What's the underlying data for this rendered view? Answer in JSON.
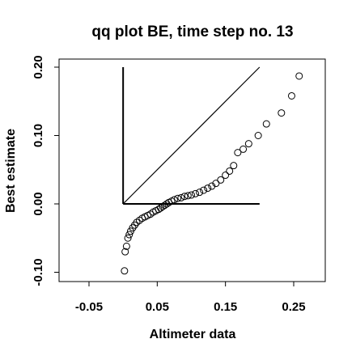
{
  "chart_data": {
    "type": "scatter",
    "title": "qq plot BE, time step no. 13",
    "xlabel": "Altimeter data",
    "ylabel": "Best estimate",
    "xlim": [
      -0.1,
      0.29
    ],
    "ylim": [
      -0.105,
      0.21
    ],
    "x_ticks": [
      -0.05,
      0.05,
      0.15,
      0.25
    ],
    "x_tick_labels": [
      "-0.05",
      "0.05",
      "0.15",
      "0.25"
    ],
    "y_ticks": [
      -0.1,
      0.0,
      0.1,
      0.2
    ],
    "y_tick_labels": [
      "-0.10",
      "0.00",
      "0.10",
      "0.20"
    ],
    "grid": false,
    "reference_lines": [
      {
        "x": [
          0,
          0
        ],
        "y": [
          0,
          0.2
        ]
      },
      {
        "x": [
          0,
          0.2
        ],
        "y": [
          0,
          0
        ]
      },
      {
        "x": [
          0,
          0.2
        ],
        "y": [
          0,
          0.2
        ]
      }
    ],
    "points": [
      [
        0.002,
        -0.098
      ],
      [
        0.003,
        -0.07
      ],
      [
        0.005,
        -0.062
      ],
      [
        0.007,
        -0.05
      ],
      [
        0.009,
        -0.045
      ],
      [
        0.011,
        -0.04
      ],
      [
        0.014,
        -0.035
      ],
      [
        0.017,
        -0.031
      ],
      [
        0.02,
        -0.027
      ],
      [
        0.024,
        -0.024
      ],
      [
        0.028,
        -0.021
      ],
      [
        0.032,
        -0.019
      ],
      [
        0.036,
        -0.017
      ],
      [
        0.04,
        -0.015
      ],
      [
        0.044,
        -0.012
      ],
      [
        0.048,
        -0.01
      ],
      [
        0.052,
        -0.008
      ],
      [
        0.055,
        -0.006
      ],
      [
        0.058,
        -0.004
      ],
      [
        0.061,
        -0.002
      ],
      [
        0.064,
        0.0
      ],
      [
        0.067,
        0.002
      ],
      [
        0.071,
        0.004
      ],
      [
        0.075,
        0.006
      ],
      [
        0.08,
        0.008
      ],
      [
        0.085,
        0.009
      ],
      [
        0.09,
        0.011
      ],
      [
        0.095,
        0.012
      ],
      [
        0.1,
        0.013
      ],
      [
        0.106,
        0.015
      ],
      [
        0.112,
        0.017
      ],
      [
        0.118,
        0.02
      ],
      [
        0.124,
        0.023
      ],
      [
        0.13,
        0.026
      ],
      [
        0.136,
        0.03
      ],
      [
        0.143,
        0.035
      ],
      [
        0.15,
        0.042
      ],
      [
        0.156,
        0.048
      ],
      [
        0.162,
        0.056
      ],
      [
        0.168,
        0.075
      ],
      [
        0.176,
        0.08
      ],
      [
        0.184,
        0.088
      ],
      [
        0.198,
        0.1
      ],
      [
        0.21,
        0.117
      ],
      [
        0.232,
        0.133
      ],
      [
        0.247,
        0.158
      ],
      [
        0.258,
        0.187
      ]
    ]
  }
}
